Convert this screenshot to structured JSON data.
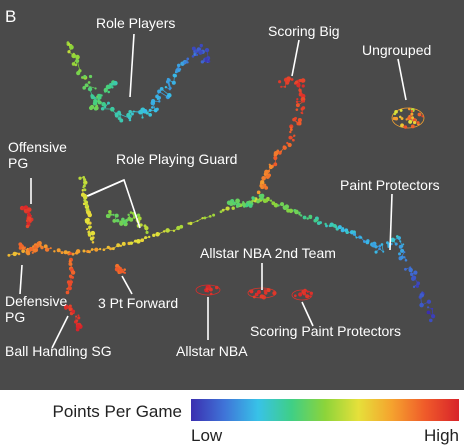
{
  "panel_label": "B",
  "colors": {
    "background": "#4a4a4a",
    "label_text": "#ffffff",
    "leader_line": "#ffffff",
    "colorbar_stops": [
      "#3b2fb0",
      "#3f74d8",
      "#38c2e8",
      "#3fcf86",
      "#8cd43a",
      "#e6e03a",
      "#f5a22e",
      "#ef5a2a",
      "#d8232a"
    ]
  },
  "chart_data": {
    "type": "scatter",
    "encoding": "topological network map; node color = Points Per Game",
    "cluster_labels": [
      "Role Players",
      "Scoring Big",
      "Ungrouped",
      "Offensive PG",
      "Role Playing Guard",
      "Paint Protectors",
      "Allstar NBA 2nd Team",
      "Defensive PG",
      "3 Pt Forward",
      "Scoring Paint Protectors",
      "Ball Handling SG",
      "Allstar NBA"
    ],
    "colorbar": {
      "title": "Points Per Game",
      "low_label": "Low",
      "high_label": "High"
    }
  }
}
